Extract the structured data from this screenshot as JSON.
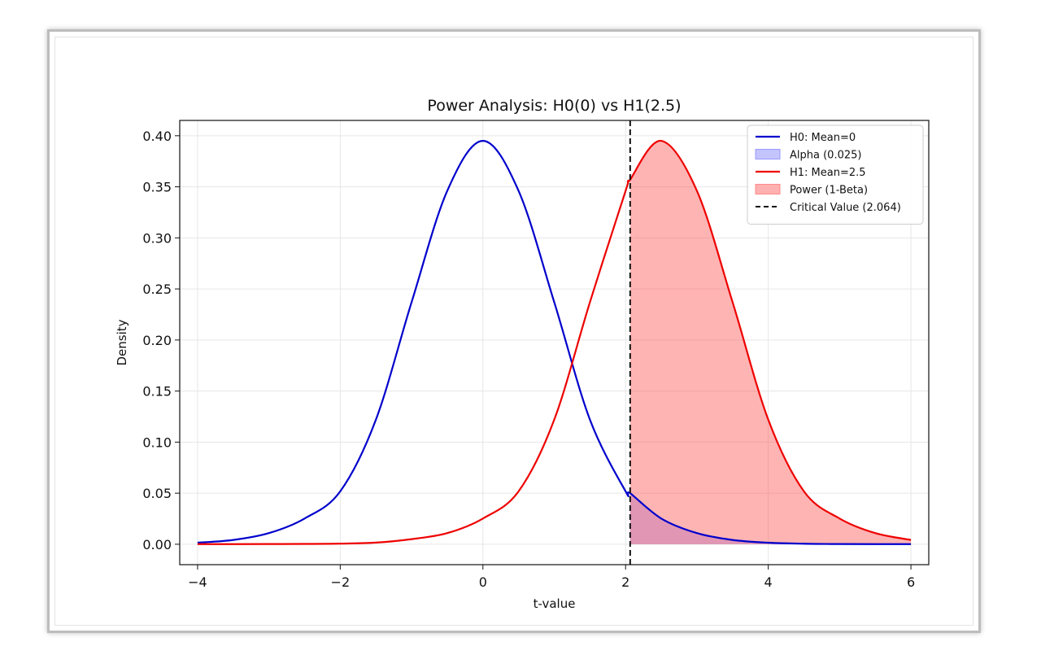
{
  "chart_data": {
    "type": "area",
    "title": "Power Analysis: H0(0) vs H1(2.5)",
    "xlabel": "t-value",
    "ylabel": "Density",
    "xlim": [
      -4.25,
      6.25
    ],
    "ylim": [
      -0.02,
      0.415
    ],
    "x_ticks": [
      -4,
      -2,
      0,
      2,
      4,
      6
    ],
    "x_tick_labels": [
      "−4",
      "−2",
      "0",
      "2",
      "4",
      "6"
    ],
    "y_ticks": [
      0.0,
      0.05,
      0.1,
      0.15,
      0.2,
      0.25,
      0.3,
      0.35,
      0.4
    ],
    "y_tick_labels": [
      "0.00",
      "0.05",
      "0.10",
      "0.15",
      "0.20",
      "0.25",
      "0.30",
      "0.35",
      "0.40"
    ],
    "grid": true,
    "legend_position": "top-right",
    "x": [
      -4.0,
      -3.5,
      -3.0,
      -2.5,
      -2.0,
      -1.5,
      -1.0,
      -0.5,
      0.0,
      0.5,
      1.0,
      1.5,
      2.0,
      2.064,
      2.5,
      3.0,
      3.5,
      4.0,
      4.5,
      5.0,
      5.5,
      6.0
    ],
    "series": [
      {
        "name": "H0: Mean=0",
        "color": "#0000cc",
        "values": [
          0.0015,
          0.0042,
          0.0109,
          0.0252,
          0.0518,
          0.122,
          0.237,
          0.346,
          0.395,
          0.346,
          0.237,
          0.122,
          0.0518,
          0.05,
          0.0252,
          0.0109,
          0.0042,
          0.0015,
          0.0005,
          0.0002,
          0.0001,
          0.0001
        ]
      },
      {
        "name": "H1: Mean=2.5",
        "color": "#ee0000",
        "values": [
          0.0001,
          0.0001,
          0.0002,
          0.0003,
          0.0006,
          0.0016,
          0.005,
          0.0109,
          0.0252,
          0.0518,
          0.122,
          0.237,
          0.346,
          0.357,
          0.395,
          0.346,
          0.237,
          0.122,
          0.0518,
          0.0252,
          0.0109,
          0.0042
        ]
      }
    ],
    "shaded_regions": [
      {
        "name": "Alpha (0.025)",
        "under": "H0: Mean=0",
        "from": 2.064,
        "to": 6.0,
        "color": "#6a6aff",
        "opacity": 0.35
      },
      {
        "name": "Power (1-Beta)",
        "under": "H1: Mean=2.5",
        "from": 2.064,
        "to": 6.0,
        "color": "#ff4d4d",
        "opacity": 0.42
      }
    ],
    "critical_value": {
      "name": "Critical Value (2.064)",
      "x": 2.064,
      "color": "#111111",
      "style": "dashed"
    },
    "legend": [
      {
        "label": "H0: Mean=0",
        "kind": "line",
        "color": "#0000cc"
      },
      {
        "label": "Alpha (0.025)",
        "kind": "patch",
        "color": "#c4c4ff",
        "edge": "#9a9aff"
      },
      {
        "label": "H1: Mean=2.5",
        "kind": "line",
        "color": "#ee0000"
      },
      {
        "label": "Power (1-Beta)",
        "kind": "patch",
        "color": "#ffb0b0",
        "edge": "#ff8a8a"
      },
      {
        "label": "Critical Value (2.064)",
        "kind": "dashed",
        "color": "#111111"
      }
    ]
  }
}
